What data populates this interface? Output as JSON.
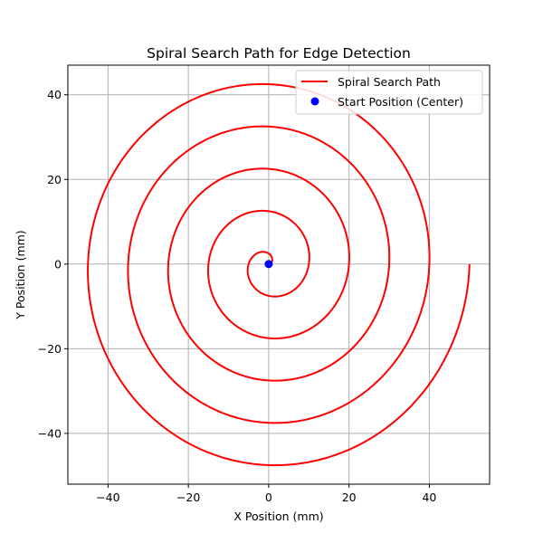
{
  "chart_data": {
    "type": "line",
    "title": "Spiral Search Path for Edge Detection",
    "xlabel": "X Position (mm)",
    "ylabel": "Y Position (mm)",
    "xlim": [
      -50,
      55
    ],
    "ylim": [
      -52,
      47
    ],
    "xticks": [
      -40,
      -20,
      0,
      20,
      40
    ],
    "yticks": [
      -40,
      -20,
      0,
      20,
      40
    ],
    "xtick_labels": [
      "−40",
      "−20",
      "0",
      "20",
      "40"
    ],
    "ytick_labels": [
      "−40",
      "−20",
      "0",
      "20",
      "40"
    ],
    "grid": true,
    "legend_position": "top-right",
    "series": [
      {
        "name": "Spiral Search Path",
        "kind": "line",
        "color": "#ff0000",
        "spiral": {
          "r_start": 0,
          "r_end": 50,
          "turns": 5,
          "direction": "counterclockwise",
          "r_per_turn": 10
        }
      },
      {
        "name": "Start Position (Center)",
        "kind": "scatter",
        "color": "#0000ff",
        "points": [
          [
            0,
            0
          ]
        ]
      }
    ]
  }
}
